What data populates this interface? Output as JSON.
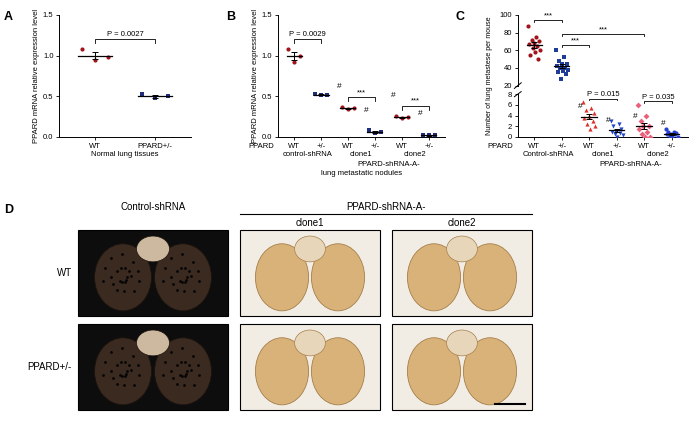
{
  "chart_data": [
    {
      "type": "dot_plot",
      "panel": "A",
      "ylabel": "PPARD mRNA relative expression level",
      "xlabel": "Normal lung tissues",
      "categories": [
        "WT",
        "PPARD+/-"
      ],
      "groups": [
        {
          "values": [
            1.08,
            0.98,
            0.95
          ],
          "mean": 1.0,
          "sem": 0.04,
          "color": "#a0151c",
          "marker": "circle"
        },
        {
          "values": [
            0.53,
            0.5,
            0.48
          ],
          "mean": 0.5,
          "sem": 0.015,
          "color": "#1f2d7a",
          "marker": "square"
        }
      ],
      "ylim": [
        0,
        1.5
      ],
      "yticks": [
        {
          "value": 0,
          "label": "0.0"
        },
        0.5,
        {
          "value": 1,
          "label": "1.0"
        },
        1.5
      ],
      "annotations": [
        {
          "text": "P = 0.0027",
          "between": [
            0,
            1
          ]
        }
      ]
    },
    {
      "type": "dot_plot",
      "panel": "B",
      "ylabel": "PPARD mRNA relative expression level",
      "xlabel": "lung metastatic nodules",
      "row_label": "PPARD",
      "categories": [
        "WT",
        "+/-",
        "WT",
        "+/-",
        "WT",
        "+/-"
      ],
      "category_groups": [
        {
          "label": "control-shRNA",
          "size": 2
        },
        {
          "label": "clone1",
          "size": 2
        },
        {
          "label": "clone2",
          "size": 2
        }
      ],
      "category_supergroups": [
        {
          "label": "PPARD-shRNA-A-",
          "start": 2,
          "size": 4
        }
      ],
      "groups": [
        {
          "values": [
            1.08,
            1.0,
            0.92
          ],
          "mean": 1.0,
          "sem": 0.05,
          "color": "#a0151c",
          "marker": "circle"
        },
        {
          "values": [
            0.53,
            0.52,
            0.51
          ],
          "mean": 0.52,
          "sem": 0.01,
          "color": "#1f2d7a",
          "marker": "square"
        },
        {
          "values": [
            0.37,
            0.35,
            0.34
          ],
          "mean": 0.35,
          "sem": 0.01,
          "color": "#a0151c",
          "marker": "circle"
        },
        {
          "values": [
            0.08,
            0.06,
            0.05
          ],
          "mean": 0.06,
          "sem": 0.01,
          "color": "#1f2d7a",
          "marker": "square"
        },
        {
          "values": [
            0.26,
            0.24,
            0.23
          ],
          "mean": 0.24,
          "sem": 0.01,
          "color": "#a0151c",
          "marker": "circle"
        },
        {
          "values": [
            0.03,
            0.02,
            0.02
          ],
          "mean": 0.02,
          "sem": 0.005,
          "color": "#1f2d7a",
          "marker": "square"
        }
      ],
      "ylim": [
        0,
        1.5
      ],
      "yticks": [
        {
          "value": 0,
          "label": "0.0"
        },
        0.5,
        {
          "value": 1,
          "label": "1.0"
        },
        1.5
      ],
      "annotations": [
        {
          "text": "P = 0.0029",
          "between": [
            0,
            1
          ]
        },
        {
          "text": "***",
          "between": [
            2,
            3
          ]
        },
        {
          "text": "***",
          "between": [
            4,
            5
          ]
        },
        {
          "text": "#",
          "at": 2
        },
        {
          "text": "#",
          "at": 3
        },
        {
          "text": "#",
          "at": 4
        },
        {
          "text": "#",
          "at": 5
        }
      ]
    },
    {
      "type": "dot_plot",
      "panel": "C",
      "ylabel": "Number of lung metastese per mouse",
      "row_label": "PPARD",
      "categories": [
        "WT",
        "+/-",
        "WT",
        "+/-",
        "WT",
        "+/-"
      ],
      "category_groups": [
        {
          "label": "Control-shRNA",
          "size": 2
        },
        {
          "label": "clone1",
          "size": 2
        },
        {
          "label": "clone2",
          "size": 2
        }
      ],
      "category_supergroups": [
        {
          "label": "PPARD-shRNA-A-",
          "start": 2,
          "size": 4
        }
      ],
      "groups": [
        {
          "values": [
            88,
            75,
            72,
            70,
            68,
            67,
            65,
            63,
            60,
            58,
            55,
            50
          ],
          "mean": 66,
          "sem": 3,
          "color": "#a0151c",
          "marker": "circle"
        },
        {
          "values": [
            60,
            52,
            48,
            45,
            44,
            42,
            40,
            40,
            38,
            37,
            35,
            33,
            28
          ],
          "mean": 41.7,
          "sem": 2.3,
          "color": "#1f3c99",
          "marker": "square"
        },
        {
          "values": [
            6.5,
            5.5,
            5,
            4.5,
            4,
            3.5,
            3,
            2.5,
            2,
            1.5
          ],
          "mean": 3.8,
          "sem": 0.5,
          "color": "#e0302b",
          "marker": "triangle_up"
        },
        {
          "values": [
            3,
            2.5,
            2,
            1.5,
            1,
            1,
            0.8,
            0.5,
            0.3,
            0
          ],
          "mean": 1.26,
          "sem": 0.3,
          "color": "#2045c8",
          "marker": "triangle_down"
        },
        {
          "values": [
            6,
            4,
            3,
            2,
            2,
            1.5,
            1,
            0.5,
            0,
            0
          ],
          "mean": 2.0,
          "sem": 0.6,
          "color": "#e8607a",
          "marker": "diamond"
        },
        {
          "values": [
            1.5,
            1,
            1,
            0.8,
            0.5,
            0.5,
            0.5,
            0.2,
            0,
            0
          ],
          "mean": 0.6,
          "sem": 0.16,
          "color": "#2a3fd0",
          "marker": "circle"
        }
      ],
      "segments": [
        {
          "ylim": [
            0,
            8
          ],
          "yticks": [
            0,
            2,
            4,
            6,
            8
          ]
        },
        {
          "ylim": [
            20,
            100
          ],
          "yticks": [
            20,
            40,
            60,
            80,
            100
          ]
        }
      ],
      "annotations": [
        {
          "text": "***",
          "between": [
            0,
            1
          ]
        },
        {
          "text": "***",
          "between": [
            1,
            2
          ]
        },
        {
          "text": "***",
          "between": [
            1,
            4
          ]
        },
        {
          "text": "P = 0.015",
          "between": [
            2,
            3
          ]
        },
        {
          "text": "P = 0.035",
          "between": [
            4,
            5
          ]
        },
        {
          "text": "#",
          "at": 2
        },
        {
          "text": "#",
          "at": 3
        },
        {
          "text": "#",
          "at": 4
        },
        {
          "text": "#",
          "at": 5
        }
      ]
    }
  ],
  "photo_panel": {
    "panel": "D",
    "columns": [
      "Control-shRNA",
      "clone1",
      "clone2"
    ],
    "column_group": "PPARD-shRNA-A-",
    "rows": [
      "WT",
      "PPARD+/-"
    ]
  }
}
